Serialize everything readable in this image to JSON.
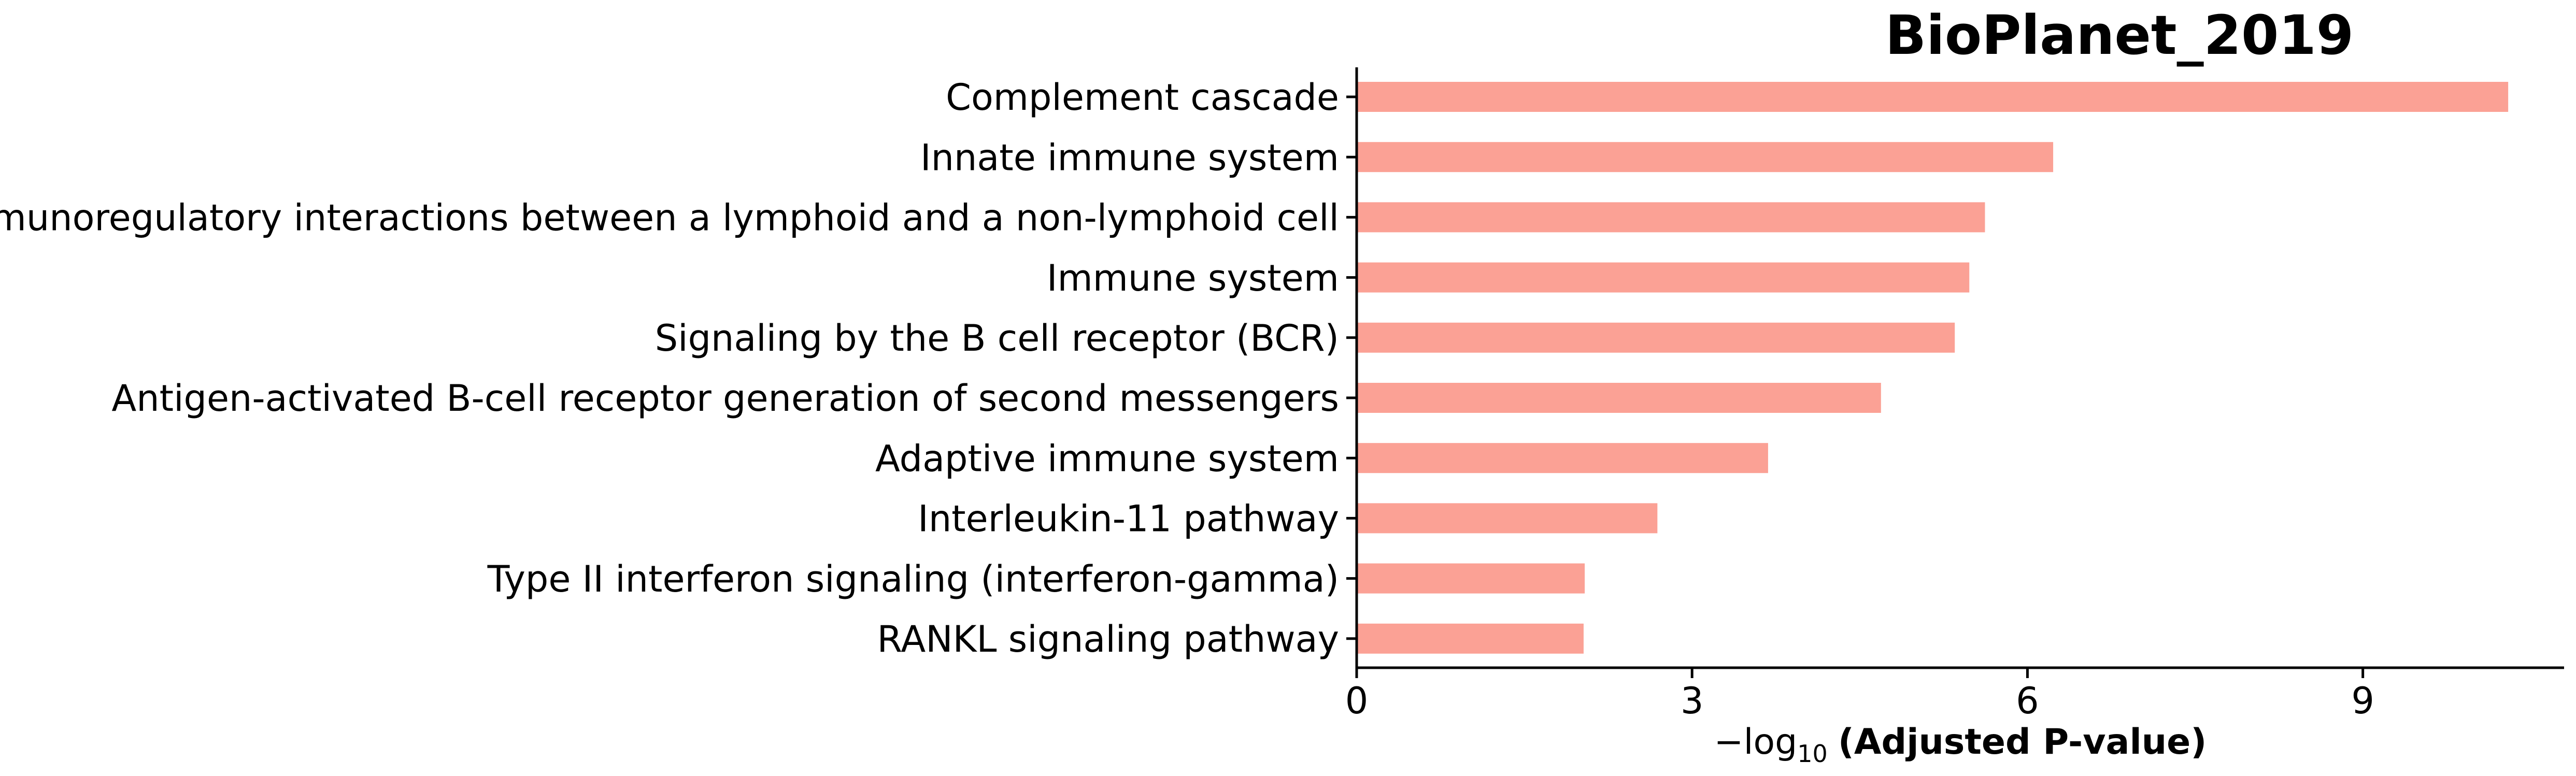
{
  "chart_data": {
    "type": "bar",
    "orientation": "horizontal",
    "title": "BioPlanet_2019",
    "xlabel": {
      "prefix": "−log",
      "subscript": "10",
      "main": "(Adjusted P-value)"
    },
    "ylabel": "",
    "categories": [
      "Complement cascade",
      "Innate immune system",
      "Immunoregulatory interactions between a lymphoid and a non-lymphoid cell",
      "Immune system",
      "Signaling by the B cell receptor (BCR)",
      "Antigen-activated B-cell receptor generation of second messengers",
      "Adaptive immune system",
      "Interleukin-11 pathway",
      "Type II interferon signaling (interferon-gamma)",
      "RANKL signaling pathway"
    ],
    "values": [
      10.3,
      6.23,
      5.62,
      5.48,
      5.35,
      4.69,
      3.68,
      2.69,
      2.04,
      2.03
    ],
    "xlim": [
      0,
      10.8
    ],
    "xticks": [
      0,
      3,
      6,
      9
    ],
    "bar_color": "#fba195",
    "grid": false,
    "legend": "none"
  }
}
